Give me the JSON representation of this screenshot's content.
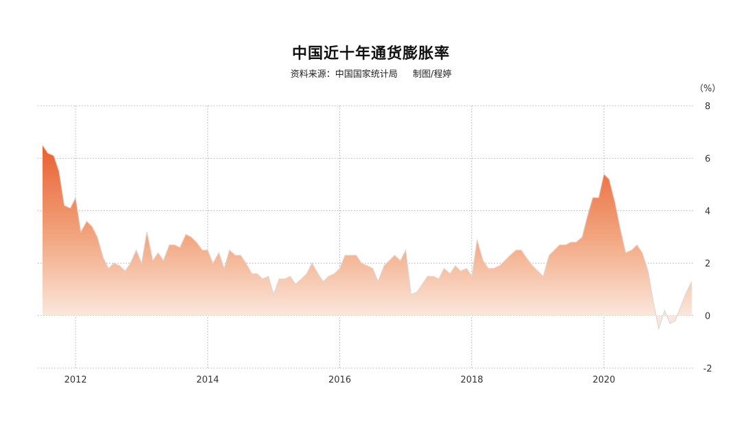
{
  "title": "中国近十年通货膨胀率",
  "subtitle": {
    "source": "资料来源：中国国家统计局",
    "author": "制图/程婷"
  },
  "colors": {
    "area_top": "#e85a2c",
    "area_bottom": "#fbe7dc",
    "grid": "#9a9a9a",
    "outline": "#d9d9d9"
  },
  "chart_data": {
    "type": "area",
    "title": "中国近十年通货膨胀率",
    "xlabel": "",
    "ylabel": "",
    "y_unit_label": "（%）",
    "ylim": [
      -2,
      8
    ],
    "xlim": [
      2011.5,
      2021.35
    ],
    "y_ticks": [
      8,
      6,
      4,
      2,
      0,
      -2
    ],
    "x_ticks": [
      2012,
      2014,
      2016,
      2018,
      2020
    ],
    "grid": true,
    "x": [
      2011.5,
      2011.58,
      2011.67,
      2011.75,
      2011.83,
      2011.92,
      2012.0,
      2012.08,
      2012.17,
      2012.25,
      2012.33,
      2012.42,
      2012.5,
      2012.58,
      2012.67,
      2012.75,
      2012.83,
      2012.92,
      2013.0,
      2013.08,
      2013.17,
      2013.25,
      2013.33,
      2013.42,
      2013.5,
      2013.58,
      2013.67,
      2013.75,
      2013.83,
      2013.92,
      2014.0,
      2014.08,
      2014.17,
      2014.25,
      2014.33,
      2014.42,
      2014.5,
      2014.58,
      2014.67,
      2014.75,
      2014.83,
      2014.92,
      2015.0,
      2015.08,
      2015.17,
      2015.25,
      2015.33,
      2015.42,
      2015.5,
      2015.58,
      2015.67,
      2015.75,
      2015.83,
      2015.92,
      2016.0,
      2016.08,
      2016.17,
      2016.25,
      2016.33,
      2016.42,
      2016.5,
      2016.58,
      2016.67,
      2016.75,
      2016.83,
      2016.92,
      2017.0,
      2017.08,
      2017.17,
      2017.25,
      2017.33,
      2017.42,
      2017.5,
      2017.58,
      2017.67,
      2017.75,
      2017.83,
      2017.92,
      2018.0,
      2018.08,
      2018.17,
      2018.25,
      2018.33,
      2018.42,
      2018.5,
      2018.58,
      2018.67,
      2018.75,
      2018.83,
      2018.92,
      2019.0,
      2019.08,
      2019.17,
      2019.25,
      2019.33,
      2019.42,
      2019.5,
      2019.58,
      2019.67,
      2019.75,
      2019.83,
      2019.92,
      2020.0,
      2020.08,
      2020.17,
      2020.25,
      2020.33,
      2020.42,
      2020.5,
      2020.58,
      2020.67,
      2020.75,
      2020.83,
      2020.92,
      2021.0,
      2021.08,
      2021.17,
      2021.25,
      2021.33
    ],
    "series": [
      {
        "values": [
          6.5,
          6.2,
          6.1,
          5.5,
          4.2,
          4.1,
          4.5,
          3.2,
          3.6,
          3.4,
          3.0,
          2.2,
          1.8,
          2.0,
          1.9,
          1.7,
          2.0,
          2.5,
          2.0,
          3.2,
          2.1,
          2.4,
          2.1,
          2.7,
          2.7,
          2.6,
          3.1,
          3.0,
          2.8,
          2.5,
          2.5,
          2.0,
          2.4,
          1.8,
          2.5,
          2.3,
          2.3,
          2.0,
          1.6,
          1.6,
          1.4,
          1.5,
          0.8,
          1.4,
          1.4,
          1.5,
          1.2,
          1.4,
          1.6,
          2.0,
          1.6,
          1.3,
          1.5,
          1.6,
          1.8,
          2.3,
          2.3,
          2.3,
          2.0,
          1.9,
          1.8,
          1.3,
          1.9,
          2.1,
          2.3,
          2.1,
          2.5,
          0.8,
          0.9,
          1.2,
          1.5,
          1.5,
          1.4,
          1.8,
          1.6,
          1.9,
          1.7,
          1.8,
          1.5,
          2.9,
          2.1,
          1.8,
          1.8,
          1.9,
          2.1,
          2.3,
          2.5,
          2.5,
          2.2,
          1.9,
          1.7,
          1.5,
          2.3,
          2.5,
          2.7,
          2.7,
          2.8,
          2.8,
          3.0,
          3.8,
          4.5,
          4.5,
          5.4,
          5.2,
          4.3,
          3.3,
          2.4,
          2.5,
          2.7,
          2.4,
          1.7,
          0.5,
          -0.5,
          0.2,
          -0.3,
          -0.2,
          0.4,
          0.9,
          1.3
        ]
      }
    ]
  }
}
